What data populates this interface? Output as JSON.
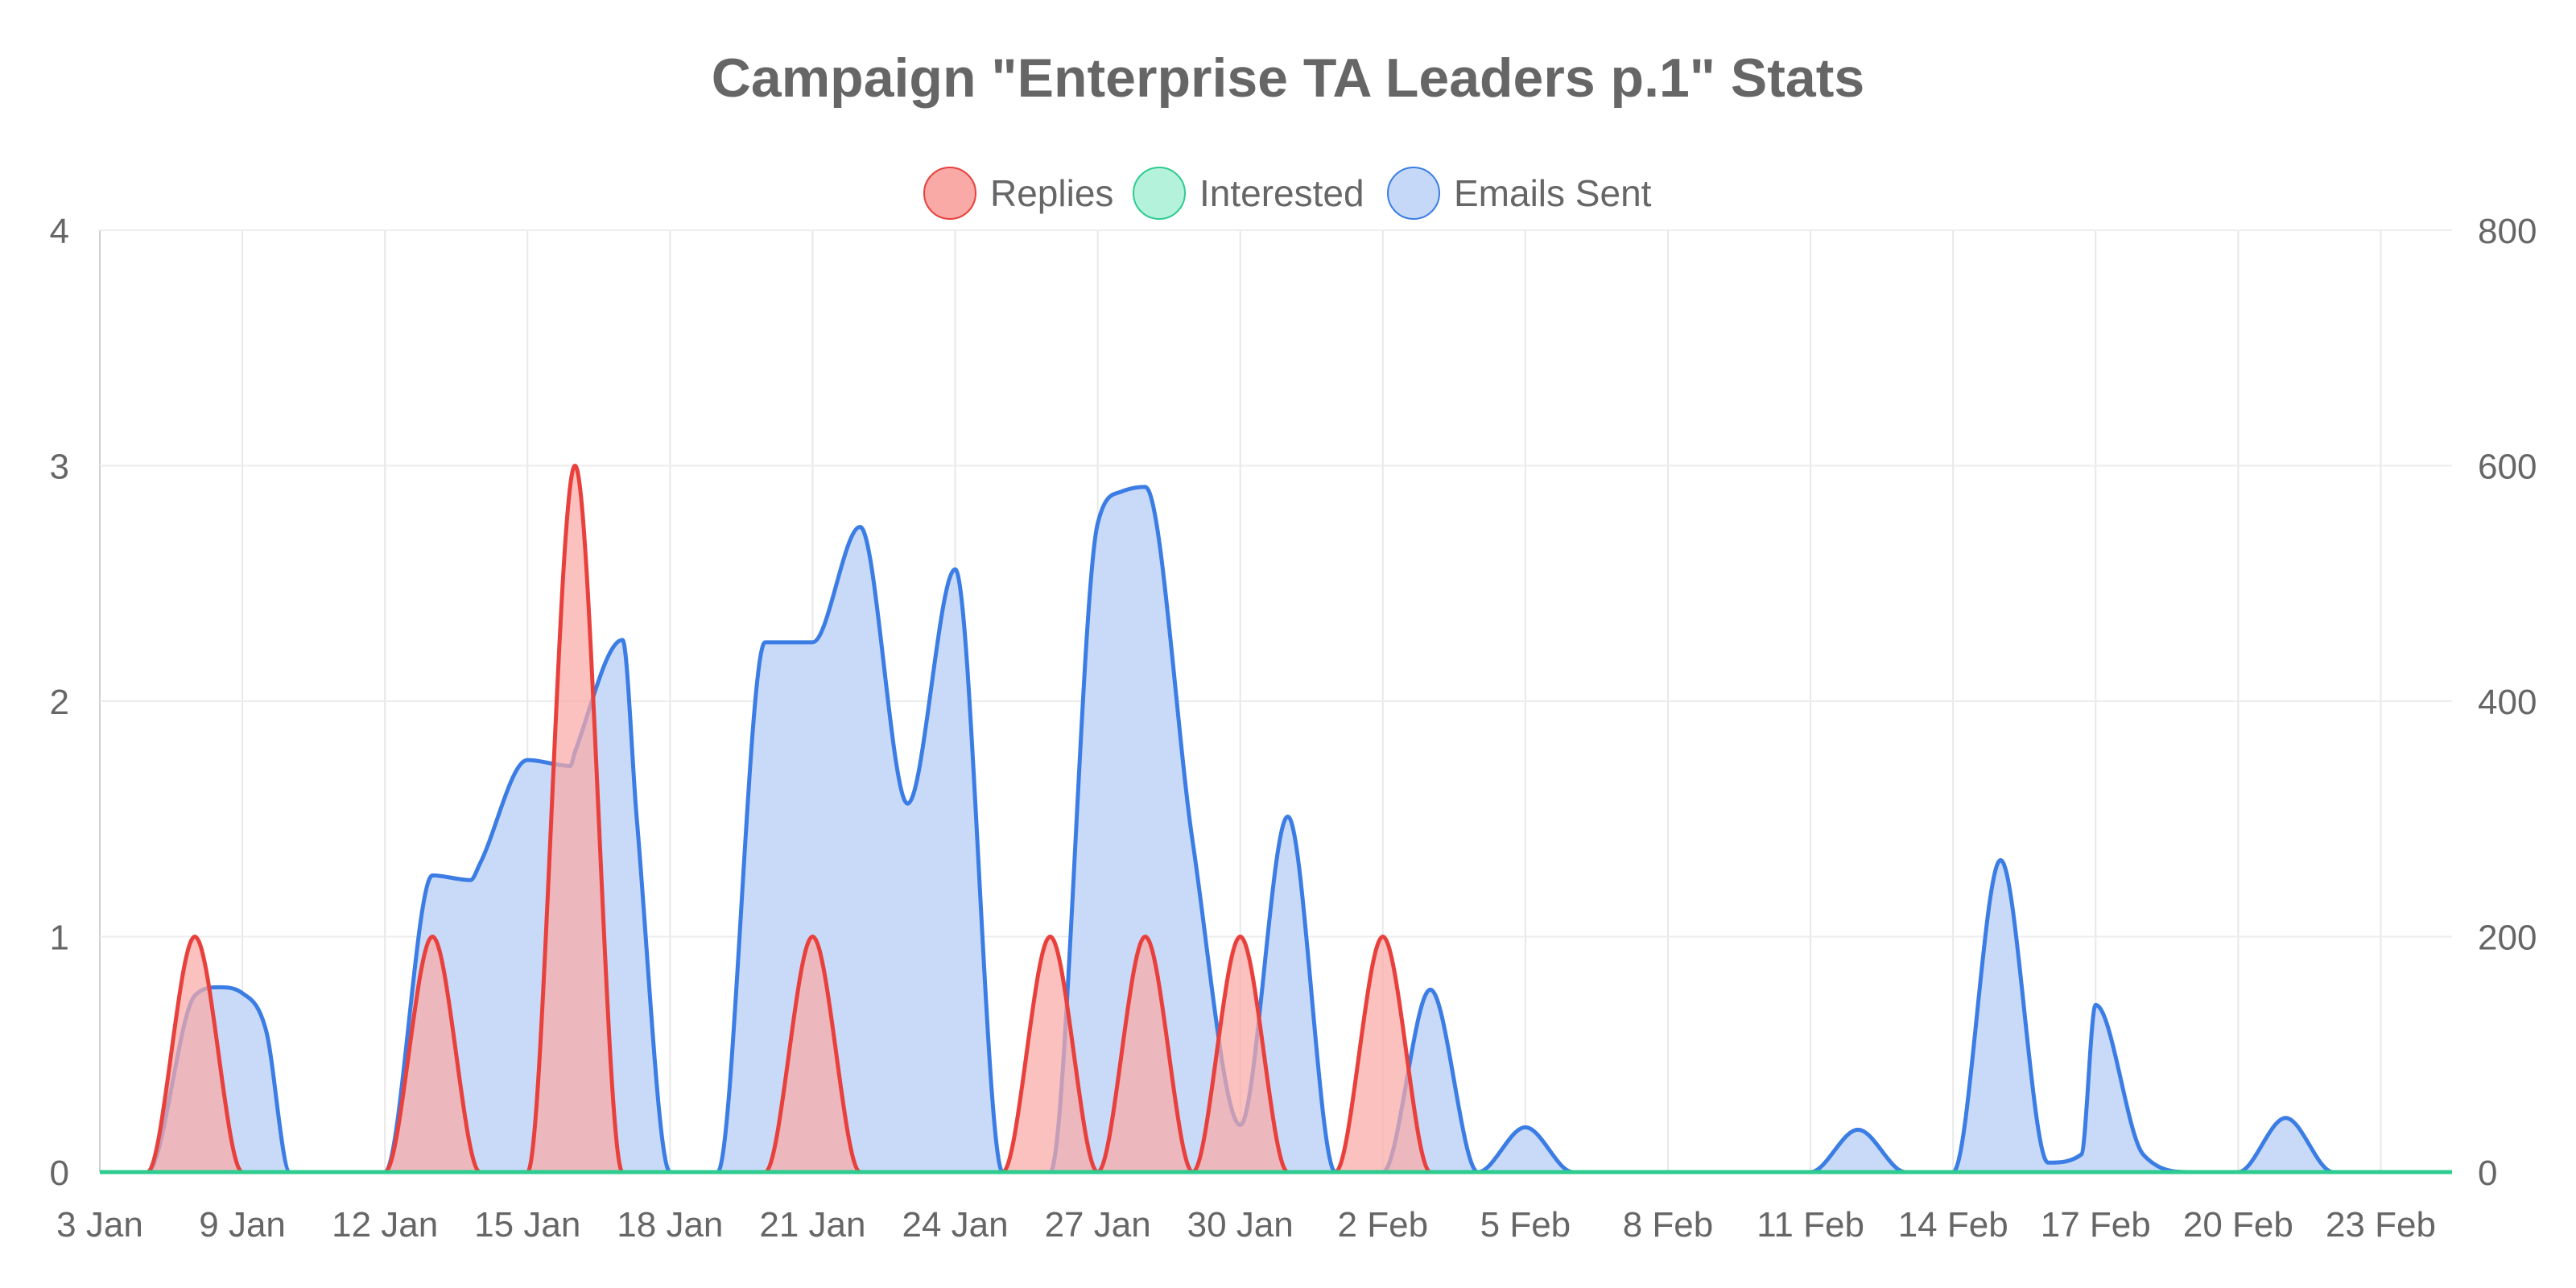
{
  "chart_data": {
    "type": "area",
    "title": "Campaign \"Enterprise TA Leaders p.1\" Stats",
    "legend_position": "top-center",
    "x_tick_labels": [
      "3 Jan",
      "9 Jan",
      "12 Jan",
      "15 Jan",
      "18 Jan",
      "21 Jan",
      "24 Jan",
      "27 Jan",
      "30 Jan",
      "2 Feb",
      "5 Feb",
      "8 Feb",
      "11 Feb",
      "14 Feb",
      "17 Feb",
      "20 Feb",
      "23 Feb"
    ],
    "x_start_day": 3,
    "x_end_day": 52.5,
    "y_left": {
      "min": 0,
      "max": 4,
      "ticks": [
        0,
        1,
        2,
        3,
        4
      ],
      "label": ""
    },
    "y_right": {
      "min": 0,
      "max": 800,
      "ticks": [
        0,
        200,
        400,
        600,
        800
      ],
      "label": ""
    },
    "grid": true,
    "series": [
      {
        "name": "Replies",
        "axis": "left",
        "color": "#e8403c",
        "fill": "#f9a9a6",
        "points": [
          [
            3,
            0
          ],
          [
            4,
            0
          ],
          [
            5,
            1
          ],
          [
            6,
            0
          ],
          [
            7,
            0
          ],
          [
            8,
            0
          ],
          [
            9,
            0
          ],
          [
            10,
            1
          ],
          [
            11,
            0
          ],
          [
            12,
            0
          ],
          [
            13,
            3
          ],
          [
            14,
            0
          ],
          [
            15,
            0
          ],
          [
            16,
            0
          ],
          [
            17,
            0
          ],
          [
            18,
            1
          ],
          [
            19,
            0
          ],
          [
            20,
            0
          ],
          [
            21,
            0
          ],
          [
            22,
            0
          ],
          [
            23,
            1
          ],
          [
            24,
            0
          ],
          [
            25,
            1
          ],
          [
            26,
            0
          ],
          [
            27,
            1
          ],
          [
            28,
            0
          ],
          [
            29,
            0
          ],
          [
            30,
            1
          ],
          [
            31,
            0
          ],
          [
            32,
            0
          ],
          [
            33,
            0
          ],
          [
            34,
            0
          ],
          [
            35,
            0
          ],
          [
            36,
            0
          ],
          [
            37,
            0
          ],
          [
            38,
            0
          ],
          [
            39,
            0
          ],
          [
            40,
            0
          ],
          [
            41,
            0
          ],
          [
            42,
            0
          ],
          [
            43,
            0
          ],
          [
            44,
            0
          ],
          [
            45,
            0
          ],
          [
            46,
            0
          ],
          [
            47,
            0
          ],
          [
            48,
            0
          ],
          [
            49,
            0
          ],
          [
            50,
            0
          ],
          [
            51,
            0
          ],
          [
            52,
            0
          ],
          [
            52.5,
            0
          ]
        ]
      },
      {
        "name": "Interested",
        "axis": "left",
        "color": "#2ecc8f",
        "fill": "#b4f2dc",
        "points": [
          [
            3,
            0
          ],
          [
            14,
            0
          ],
          [
            28,
            0
          ],
          [
            31,
            0
          ],
          [
            52.5,
            0
          ]
        ]
      },
      {
        "name": "Emails Sent",
        "axis": "right",
        "color": "#3b7de4",
        "fill": "#c5d8f8",
        "points": [
          [
            3,
            0
          ],
          [
            4,
            0
          ],
          [
            5,
            150
          ],
          [
            5.5,
            157
          ],
          [
            6,
            152
          ],
          [
            6.5,
            120
          ],
          [
            7,
            0
          ],
          [
            8,
            0
          ],
          [
            9,
            0
          ],
          [
            10,
            252
          ],
          [
            10.8,
            248
          ],
          [
            11,
            262
          ],
          [
            12,
            350
          ],
          [
            12.9,
            345
          ],
          [
            13,
            357
          ],
          [
            14,
            452
          ],
          [
            14.3,
            300
          ],
          [
            15,
            0
          ],
          [
            16,
            0
          ],
          [
            17,
            450
          ],
          [
            18,
            450
          ],
          [
            19,
            548
          ],
          [
            20,
            313
          ],
          [
            21,
            512
          ],
          [
            22,
            0
          ],
          [
            23,
            0
          ],
          [
            24,
            551
          ],
          [
            24.5,
            578
          ],
          [
            25,
            582
          ],
          [
            26,
            280
          ],
          [
            27,
            40
          ],
          [
            27,
            0
          ],
          [
            28,
            302
          ],
          [
            29,
            0
          ],
          [
            30,
            0
          ],
          [
            31,
            155
          ],
          [
            32,
            0
          ],
          [
            33,
            38
          ],
          [
            34,
            0
          ],
          [
            35,
            0
          ],
          [
            36,
            0
          ],
          [
            37,
            0
          ],
          [
            38,
            0
          ],
          [
            38.5,
            0
          ],
          [
            39,
            0
          ],
          [
            40,
            36
          ],
          [
            41,
            0
          ],
          [
            42,
            0
          ],
          [
            43,
            265
          ],
          [
            44,
            8
          ],
          [
            44.7,
            15
          ],
          [
            45,
            142
          ],
          [
            46,
            15
          ],
          [
            47,
            0
          ],
          [
            48,
            0
          ],
          [
            49,
            46
          ],
          [
            50,
            0
          ],
          [
            51,
            0
          ],
          [
            52,
            0
          ],
          [
            52.5,
            0
          ]
        ]
      }
    ]
  }
}
